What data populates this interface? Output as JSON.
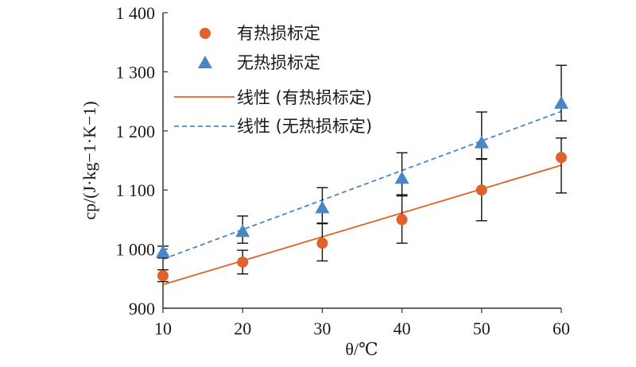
{
  "chart_data": {
    "type": "scatter",
    "title": "",
    "xlabel": "θ/℃",
    "ylabel": "cp/(J·kg−1·K−1)",
    "xlim": [
      10,
      60
    ],
    "ylim": [
      900,
      1400
    ],
    "x_ticks": [
      10,
      20,
      30,
      40,
      50,
      60
    ],
    "x_tick_labels": [
      "10",
      "20",
      "30",
      "40",
      "50",
      "60"
    ],
    "y_ticks": [
      900,
      1000,
      1100,
      1200,
      1300,
      1400
    ],
    "y_tick_labels": [
      "900",
      "1 000",
      "1 100",
      "1 200",
      "1 300",
      "1 400"
    ],
    "grid": false,
    "legend_position": "top-center",
    "series": [
      {
        "name": "有热损标定",
        "marker": "circle",
        "color": "#e0622a",
        "x": [
          10,
          20,
          30,
          40,
          50,
          60
        ],
        "y": [
          955,
          978,
          1010,
          1050,
          1100,
          1155
        ],
        "err_low": [
          10,
          20,
          30,
          40,
          52,
          60
        ],
        "err_high": [
          10,
          20,
          33,
          42,
          53,
          33
        ]
      },
      {
        "name": "无热损标定",
        "marker": "triangle",
        "color": "#4a86c5",
        "x": [
          10,
          20,
          30,
          40,
          50,
          60
        ],
        "y": [
          995,
          1030,
          1070,
          1120,
          1180,
          1247
        ],
        "err_low": [
          10,
          20,
          26,
          30,
          28,
          30
        ],
        "err_high": [
          10,
          26,
          34,
          43,
          52,
          64
        ]
      }
    ],
    "fits": [
      {
        "name": "线性 (有热损标定)",
        "style": "solid",
        "color": "#e0622a",
        "x": [
          10,
          60
        ],
        "y": [
          940,
          1142
        ]
      },
      {
        "name": "线性 (无热损标定)",
        "style": "dashed",
        "color": "#4a86c5",
        "x": [
          10,
          60
        ],
        "y": [
          983,
          1233
        ]
      }
    ]
  }
}
